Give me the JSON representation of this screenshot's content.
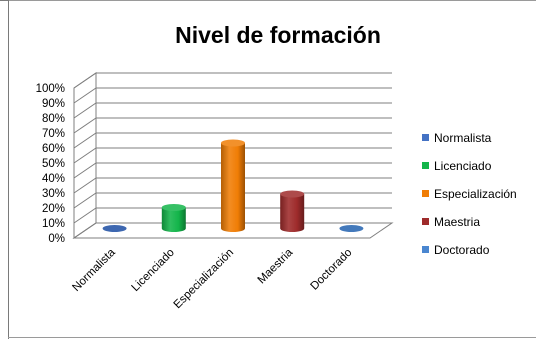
{
  "chart_data": {
    "type": "bar",
    "style": "3d-cylinder",
    "title": "Nivel de formación",
    "categories": [
      "Normalista",
      "Licenciado",
      "Especialización",
      "Maestria",
      "Doctorado"
    ],
    "values": [
      0,
      14,
      57,
      23,
      0
    ],
    "ylim": [
      0,
      100
    ],
    "y_ticks": [
      "0%",
      "10%",
      "20%",
      "30%",
      "40%",
      "50%",
      "60%",
      "70%",
      "80%",
      "90%",
      "100%"
    ],
    "grid": true,
    "legend_position": "right",
    "legend": [
      "Normalista",
      "Licenciado",
      "Especialización",
      "Maestria",
      "Doctorado"
    ],
    "colors": [
      "#4472c4",
      "#13b54a",
      "#f07d05",
      "#9e2b2b",
      "#4a86d0"
    ]
  }
}
